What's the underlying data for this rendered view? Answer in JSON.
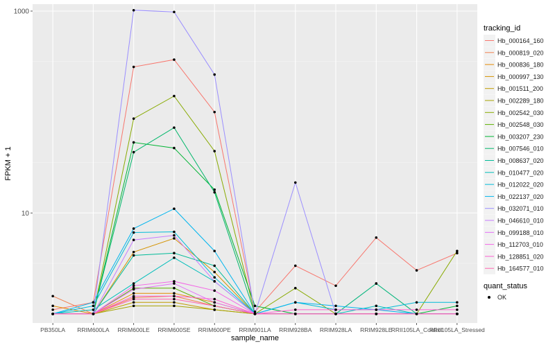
{
  "chart_data": {
    "type": "line",
    "title": "",
    "xlabel": "sample_name",
    "ylabel": "FPKM + 1",
    "y_scale": "log10",
    "ylim": [
      1,
      1000
    ],
    "y_ticks": [
      10,
      1000
    ],
    "y_tick_labels": [
      "10",
      "1000"
    ],
    "categories": [
      "PB350LA",
      "RRIM600LA",
      "RRIM600LE",
      "RRIM600SE",
      "RRIM600PE",
      "RRIM901LA",
      "RRIM928BA",
      "RRIM928LA",
      "RRIM928LE",
      "RRII105LA_Control",
      "RRII105LA_Stressed"
    ],
    "legend_position": "right",
    "grid": true,
    "panel_background": "#ebebeb",
    "legend": {
      "title": "tracking_id",
      "point_title": "quant_status",
      "point_label": "OK"
    },
    "series": [
      {
        "name": "Hb_000164_160",
        "color": "#F8766D",
        "values": [
          1.1,
          1.3,
          280,
          330,
          100,
          1.05,
          3.0,
          1.9,
          5.7,
          2.7,
          4.0
        ]
      },
      {
        "name": "Hb_000819_020",
        "color": "#F07F4E",
        "values": [
          1.5,
          1.0,
          1.45,
          1.5,
          1.2,
          1.0,
          1.0,
          1.0,
          1.0,
          1.0,
          1.0
        ]
      },
      {
        "name": "Hb_000836_180",
        "color": "#E38900",
        "values": [
          1.2,
          1.0,
          1.6,
          1.6,
          1.3,
          1.0,
          1.0,
          1.0,
          1.0,
          1.0,
          1.0
        ]
      },
      {
        "name": "Hb_000997_130",
        "color": "#D49200",
        "values": [
          1.0,
          1.0,
          4.1,
          5.6,
          2.6,
          1.0,
          1.0,
          1.0,
          1.0,
          1.0,
          1.0
        ]
      },
      {
        "name": "Hb_001511_200",
        "color": "#BF9B00",
        "values": [
          1.0,
          1.0,
          1.3,
          1.3,
          1.1,
          1.0,
          1.0,
          1.0,
          1.0,
          1.0,
          1.0
        ]
      },
      {
        "name": "Hb_002289_180",
        "color": "#A7A300",
        "values": [
          1.0,
          1.0,
          1.2,
          1.2,
          1.1,
          1.0,
          1.0,
          1.0,
          1.0,
          1.0,
          1.0
        ]
      },
      {
        "name": "Hb_002542_030",
        "color": "#88AA00",
        "values": [
          1.0,
          1.0,
          86,
          144,
          41,
          1.0,
          1.8,
          1.0,
          2.0,
          1.0,
          4.2
        ]
      },
      {
        "name": "Hb_002548_030",
        "color": "#5CB000",
        "values": [
          1.0,
          1.0,
          1.8,
          1.8,
          1.2,
          1.0,
          1.0,
          1.0,
          1.0,
          1.0,
          1.0
        ]
      },
      {
        "name": "Hb_003207_230",
        "color": "#00B433",
        "values": [
          1.0,
          1.0,
          50,
          44,
          17,
          1.2,
          1.0,
          1.0,
          1.0,
          1.0,
          1.2
        ]
      },
      {
        "name": "Hb_007546_010",
        "color": "#00B76A",
        "values": [
          1.0,
          1.0,
          40,
          70,
          16,
          1.0,
          1.0,
          1.0,
          1.0,
          1.0,
          1.0
        ]
      },
      {
        "name": "Hb_008637_020",
        "color": "#00BB98",
        "values": [
          1.0,
          1.0,
          3.8,
          4.0,
          3.0,
          1.0,
          1.0,
          1.0,
          2.0,
          1.0,
          1.0
        ]
      },
      {
        "name": "Hb_010477_020",
        "color": "#00BDBA",
        "values": [
          1.0,
          1.1,
          2.0,
          3.6,
          2.1,
          1.0,
          1.0,
          1.0,
          1.2,
          1.0,
          1.0
        ]
      },
      {
        "name": "Hb_012022_020",
        "color": "#00BBD8",
        "values": [
          1.0,
          1.2,
          6.4,
          6.5,
          2.3,
          1.0,
          1.3,
          1.1,
          1.1,
          1.3,
          1.3
        ]
      },
      {
        "name": "Hb_022137_020",
        "color": "#00B5EE",
        "values": [
          1.0,
          1.3,
          7.0,
          11,
          4.2,
          1.0,
          1.3,
          1.2,
          1.1,
          1.0,
          1.0
        ]
      },
      {
        "name": "Hb_032071_010",
        "color": "#9B8EFF",
        "values": [
          1.0,
          1.0,
          1020,
          980,
          235,
          1.0,
          20,
          1.0,
          1.0,
          1.0,
          1.0
        ]
      },
      {
        "name": "Hb_046610_010",
        "color": "#C77CFF",
        "values": [
          1.0,
          1.0,
          5.4,
          6.0,
          2.1,
          1.0,
          1.0,
          1.0,
          1.0,
          1.0,
          1.0
        ]
      },
      {
        "name": "Hb_099188_010",
        "color": "#E26EF7",
        "values": [
          1.0,
          1.0,
          1.75,
          2.0,
          1.3,
          1.0,
          1.0,
          1.0,
          1.0,
          1.0,
          1.0
        ]
      },
      {
        "name": "Hb_112703_010",
        "color": "#F365E6",
        "values": [
          1.0,
          1.0,
          1.9,
          2.1,
          1.7,
          1.0,
          1.0,
          1.0,
          1.0,
          1.0,
          1.0
        ]
      },
      {
        "name": "Hb_128851_020",
        "color": "#FD61D1",
        "values": [
          1.0,
          1.0,
          1.5,
          1.5,
          1.4,
          1.0,
          1.1,
          1.1,
          1.1,
          1.1,
          1.1
        ]
      },
      {
        "name": "Hb_164577_010",
        "color": "#FF65AF",
        "values": [
          1.0,
          1.0,
          1.4,
          1.4,
          1.2,
          1.0,
          1.0,
          1.0,
          1.0,
          1.0,
          1.0
        ]
      }
    ]
  }
}
